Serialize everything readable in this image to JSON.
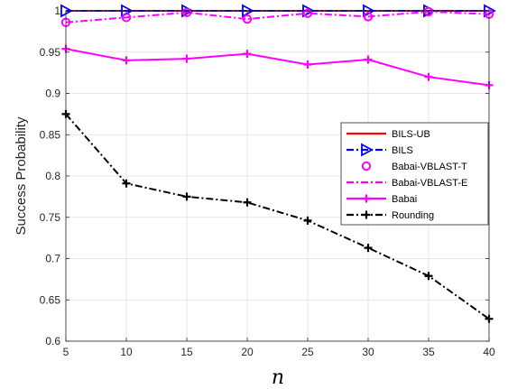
{
  "chart_data": {
    "type": "line",
    "title": "",
    "xlabel": "n",
    "ylabel": "Success Probability",
    "x": [
      5,
      10,
      15,
      20,
      25,
      30,
      35,
      40
    ],
    "xlim": [
      5,
      40
    ],
    "ylim": [
      0.6,
      1.0
    ],
    "xticks": [
      "5",
      "10",
      "15",
      "20",
      "25",
      "30",
      "35",
      "40"
    ],
    "yticks": [
      "0.6",
      "0.65",
      "0.7",
      "0.75",
      "0.8",
      "0.85",
      "0.9",
      "0.95",
      "1"
    ],
    "grid": true,
    "legend_position": "right",
    "series": [
      {
        "name": "BILS-UB",
        "values": [
          1.0,
          1.0,
          1.0,
          1.0,
          1.0,
          1.0,
          1.0,
          1.0
        ],
        "color": "#ff0000",
        "line": "solid",
        "marker": "none"
      },
      {
        "name": "BILS",
        "values": [
          1.0,
          1.0,
          1.0,
          1.0,
          1.0,
          1.0,
          1.0,
          1.0
        ],
        "color": "#0000ff",
        "line": "dashdot",
        "marker": "triangle-right"
      },
      {
        "name": "Babai-VBLAST-T",
        "values": [
          0.986,
          0.992,
          0.998,
          0.99,
          0.997,
          0.993,
          0.999,
          0.996
        ],
        "color": "#ff00ff",
        "line": "none",
        "marker": "circle"
      },
      {
        "name": "Babai-VBLAST-E",
        "values": [
          0.986,
          0.992,
          0.998,
          0.99,
          0.997,
          0.993,
          0.999,
          0.996
        ],
        "color": "#ff00ff",
        "line": "dashdot",
        "marker": "none"
      },
      {
        "name": "Babai",
        "values": [
          0.954,
          0.94,
          0.942,
          0.948,
          0.935,
          0.941,
          0.92,
          0.91
        ],
        "color": "#ff00ff",
        "line": "solid",
        "marker": "plus"
      },
      {
        "name": "Rounding",
        "values": [
          0.875,
          0.791,
          0.775,
          0.768,
          0.746,
          0.713,
          0.679,
          0.627
        ],
        "color": "#000000",
        "line": "dashdot",
        "marker": "plus"
      }
    ]
  }
}
